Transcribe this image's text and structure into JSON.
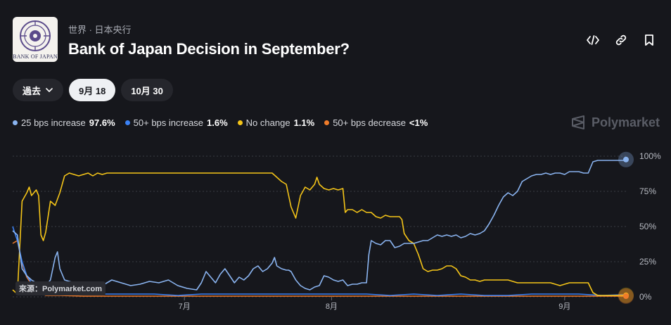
{
  "header": {
    "logo_text": "BANK OF JAPAN",
    "breadcrumb": "世界 · 日本央行",
    "title": "Bank of Japan Decision in September?"
  },
  "actions": [
    {
      "icon": "embed-icon"
    },
    {
      "icon": "link-icon"
    },
    {
      "icon": "bookmark-icon"
    }
  ],
  "tabs": {
    "history_label": "過去",
    "date1_label": "9月 18",
    "date2_label": "10月 30"
  },
  "legend": [
    {
      "label": "25 bps increase",
      "value": "97.6%",
      "color": "#8ab4f0"
    },
    {
      "label": "50+ bps increase",
      "value": "1.6%",
      "color": "#3b82f6"
    },
    {
      "label": "No change",
      "value": "1.1%",
      "color": "#f5c518"
    },
    {
      "label": "50+ bps decrease",
      "value": "<1%",
      "color": "#f07c2a"
    }
  ],
  "brand": "Polymarket",
  "source": "來源：Polymarket.com",
  "chart_data": {
    "type": "line",
    "x_tick_labels": [
      "7月",
      "8月",
      "9月"
    ],
    "x_tick_positions": [
      0.28,
      0.52,
      0.9
    ],
    "y_ticks": [
      "100%",
      "75%",
      "50%",
      "25%",
      "0%"
    ],
    "ylim": [
      0,
      100
    ],
    "grid": true,
    "series": [
      {
        "name": "25 bps increase",
        "color": "#8ab4f0",
        "points": [
          [
            0,
            47
          ],
          [
            0.01,
            44
          ],
          [
            0.02,
            20
          ],
          [
            0.03,
            15
          ],
          [
            0.04,
            12
          ],
          [
            0.05,
            10
          ],
          [
            0.06,
            9
          ],
          [
            0.07,
            8
          ],
          [
            0.08,
            12
          ],
          [
            0.09,
            28
          ],
          [
            0.095,
            32
          ],
          [
            0.1,
            20
          ],
          [
            0.11,
            12
          ],
          [
            0.13,
            10
          ],
          [
            0.15,
            10
          ],
          [
            0.17,
            9
          ],
          [
            0.19,
            8
          ],
          [
            0.21,
            12
          ],
          [
            0.23,
            10
          ],
          [
            0.25,
            8
          ],
          [
            0.27,
            9
          ],
          [
            0.29,
            11
          ],
          [
            0.31,
            10
          ],
          [
            0.33,
            12
          ],
          [
            0.35,
            8
          ],
          [
            0.37,
            6
          ],
          [
            0.39,
            5
          ],
          [
            0.4,
            10
          ],
          [
            0.41,
            18
          ],
          [
            0.42,
            14
          ],
          [
            0.43,
            10
          ],
          [
            0.44,
            16
          ],
          [
            0.45,
            20
          ],
          [
            0.46,
            15
          ],
          [
            0.47,
            10
          ],
          [
            0.48,
            14
          ],
          [
            0.49,
            12
          ],
          [
            0.5,
            15
          ],
          [
            0.51,
            20
          ],
          [
            0.52,
            22
          ],
          [
            0.53,
            18
          ],
          [
            0.54,
            20
          ],
          [
            0.55,
            24
          ],
          [
            0.555,
            28
          ],
          [
            0.56,
            22
          ],
          [
            0.57,
            20
          ],
          [
            0.58,
            19
          ],
          [
            0.585,
            19
          ],
          [
            0.59,
            18
          ],
          [
            0.6,
            12
          ],
          [
            0.61,
            8
          ],
          [
            0.62,
            6
          ],
          [
            0.63,
            5
          ],
          [
            0.64,
            7
          ],
          [
            0.65,
            8
          ],
          [
            0.66,
            15
          ],
          [
            0.67,
            14
          ],
          [
            0.68,
            12
          ],
          [
            0.69,
            11
          ],
          [
            0.7,
            12
          ],
          [
            0.71,
            8
          ],
          [
            0.72,
            9
          ],
          [
            0.73,
            9
          ],
          [
            0.74,
            10
          ],
          [
            0.75,
            10
          ],
          [
            0.755,
            30
          ],
          [
            0.76,
            40
          ],
          [
            0.77,
            38
          ],
          [
            0.78,
            37
          ],
          [
            0.79,
            40
          ],
          [
            0.8,
            40
          ],
          [
            0.81,
            35
          ],
          [
            0.82,
            36
          ],
          [
            0.83,
            38
          ],
          [
            0.84,
            38
          ],
          [
            0.85,
            38
          ],
          [
            0.86,
            39
          ],
          [
            0.87,
            40
          ],
          [
            0.88,
            40
          ],
          [
            0.89,
            42
          ],
          [
            0.9,
            44
          ],
          [
            0.91,
            43
          ],
          [
            0.92,
            44
          ],
          [
            0.93,
            43
          ],
          [
            0.94,
            44
          ],
          [
            0.95,
            42
          ],
          [
            0.96,
            43
          ],
          [
            0.97,
            45
          ],
          [
            0.98,
            44
          ],
          [
            0.99,
            45
          ],
          [
            1.0,
            47
          ],
          [
            1.01,
            52
          ],
          [
            1.02,
            58
          ],
          [
            1.03,
            65
          ],
          [
            1.04,
            71
          ],
          [
            1.05,
            74
          ],
          [
            1.06,
            72
          ],
          [
            1.07,
            75
          ],
          [
            1.08,
            82
          ],
          [
            1.09,
            84
          ],
          [
            1.1,
            86
          ],
          [
            1.11,
            87
          ],
          [
            1.12,
            87
          ],
          [
            1.13,
            88
          ],
          [
            1.14,
            87
          ],
          [
            1.15,
            88
          ],
          [
            1.16,
            88
          ],
          [
            1.17,
            87
          ],
          [
            1.18,
            89
          ],
          [
            1.19,
            89
          ],
          [
            1.2,
            89
          ],
          [
            1.21,
            88
          ],
          [
            1.22,
            88
          ],
          [
            1.23,
            96
          ],
          [
            1.24,
            97
          ],
          [
            1.25,
            97
          ],
          [
            1.27,
            97
          ],
          [
            1.3,
            97
          ]
        ],
        "last_value": 97.6
      },
      {
        "name": "50+ bps increase",
        "color": "#3b82f6",
        "points": [
          [
            0,
            50
          ],
          [
            0.01,
            40
          ],
          [
            0.02,
            25
          ],
          [
            0.03,
            15
          ],
          [
            0.04,
            10
          ],
          [
            0.05,
            8
          ],
          [
            0.06,
            6
          ],
          [
            0.07,
            4
          ],
          [
            0.08,
            3
          ],
          [
            0.1,
            3
          ],
          [
            0.15,
            2
          ],
          [
            0.2,
            2
          ],
          [
            0.25,
            2
          ],
          [
            0.3,
            2
          ],
          [
            0.35,
            1
          ],
          [
            0.4,
            2
          ],
          [
            0.45,
            2
          ],
          [
            0.5,
            2
          ],
          [
            0.55,
            2
          ],
          [
            0.6,
            2
          ],
          [
            0.65,
            2
          ],
          [
            0.7,
            2
          ],
          [
            0.75,
            2
          ],
          [
            0.8,
            1
          ],
          [
            0.85,
            2
          ],
          [
            0.9,
            1
          ],
          [
            0.95,
            2
          ],
          [
            1.0,
            1
          ],
          [
            1.05,
            1
          ],
          [
            1.1,
            2
          ],
          [
            1.15,
            2
          ],
          [
            1.2,
            2
          ],
          [
            1.25,
            1
          ],
          [
            1.3,
            1.6
          ]
        ],
        "last_value": 1.6
      },
      {
        "name": "No change",
        "color": "#f5c518",
        "points": [
          [
            0,
            5
          ],
          [
            0.01,
            2
          ],
          [
            0.02,
            68
          ],
          [
            0.03,
            74
          ],
          [
            0.035,
            78
          ],
          [
            0.04,
            72
          ],
          [
            0.05,
            76
          ],
          [
            0.055,
            72
          ],
          [
            0.06,
            44
          ],
          [
            0.065,
            40
          ],
          [
            0.07,
            46
          ],
          [
            0.08,
            68
          ],
          [
            0.09,
            65
          ],
          [
            0.1,
            74
          ],
          [
            0.11,
            86
          ],
          [
            0.12,
            88
          ],
          [
            0.13,
            87
          ],
          [
            0.14,
            86
          ],
          [
            0.15,
            87
          ],
          [
            0.16,
            88
          ],
          [
            0.17,
            86
          ],
          [
            0.18,
            88
          ],
          [
            0.19,
            87
          ],
          [
            0.2,
            88
          ],
          [
            0.25,
            88
          ],
          [
            0.3,
            88
          ],
          [
            0.35,
            88
          ],
          [
            0.4,
            88
          ],
          [
            0.45,
            88
          ],
          [
            0.5,
            88
          ],
          [
            0.55,
            88
          ],
          [
            0.56,
            85
          ],
          [
            0.57,
            82
          ],
          [
            0.58,
            80
          ],
          [
            0.59,
            64
          ],
          [
            0.6,
            56
          ],
          [
            0.61,
            72
          ],
          [
            0.62,
            78
          ],
          [
            0.63,
            76
          ],
          [
            0.64,
            80
          ],
          [
            0.645,
            85
          ],
          [
            0.65,
            80
          ],
          [
            0.66,
            77
          ],
          [
            0.67,
            76
          ],
          [
            0.68,
            77
          ],
          [
            0.69,
            76
          ],
          [
            0.7,
            77
          ],
          [
            0.705,
            60
          ],
          [
            0.71,
            62
          ],
          [
            0.72,
            62
          ],
          [
            0.73,
            60
          ],
          [
            0.74,
            62
          ],
          [
            0.75,
            60
          ],
          [
            0.76,
            60
          ],
          [
            0.77,
            57
          ],
          [
            0.78,
            56
          ],
          [
            0.79,
            58
          ],
          [
            0.8,
            57
          ],
          [
            0.81,
            57
          ],
          [
            0.82,
            57
          ],
          [
            0.825,
            55
          ],
          [
            0.83,
            45
          ],
          [
            0.84,
            40
          ],
          [
            0.85,
            38
          ],
          [
            0.86,
            30
          ],
          [
            0.87,
            20
          ],
          [
            0.88,
            18
          ],
          [
            0.89,
            19
          ],
          [
            0.9,
            19
          ],
          [
            0.91,
            20
          ],
          [
            0.92,
            22
          ],
          [
            0.93,
            22
          ],
          [
            0.94,
            20
          ],
          [
            0.95,
            15
          ],
          [
            0.96,
            14
          ],
          [
            0.97,
            12
          ],
          [
            0.98,
            12
          ],
          [
            0.99,
            11
          ],
          [
            1.0,
            12
          ],
          [
            1.01,
            12
          ],
          [
            1.02,
            12
          ],
          [
            1.03,
            12
          ],
          [
            1.05,
            12
          ],
          [
            1.07,
            10
          ],
          [
            1.08,
            10
          ],
          [
            1.09,
            10
          ],
          [
            1.1,
            10
          ],
          [
            1.12,
            10
          ],
          [
            1.14,
            10
          ],
          [
            1.16,
            8
          ],
          [
            1.18,
            10
          ],
          [
            1.2,
            10
          ],
          [
            1.22,
            10
          ],
          [
            1.23,
            3
          ],
          [
            1.24,
            1
          ],
          [
            1.27,
            1
          ],
          [
            1.3,
            1.1
          ]
        ],
        "last_value": 1.1
      },
      {
        "name": "50+ bps decrease",
        "color": "#f07c2a",
        "points": [
          [
            0,
            38
          ],
          [
            0.01,
            40
          ],
          [
            0.02,
            24
          ],
          [
            0.03,
            14
          ],
          [
            0.04,
            9
          ],
          [
            0.05,
            4
          ],
          [
            0.06,
            3
          ],
          [
            0.07,
            1
          ],
          [
            0.08,
            1
          ],
          [
            0.1,
            1
          ],
          [
            0.15,
            0.5
          ],
          [
            0.2,
            0.5
          ],
          [
            0.25,
            0.5
          ],
          [
            0.3,
            0.5
          ],
          [
            0.35,
            0.5
          ],
          [
            0.4,
            0.5
          ],
          [
            0.45,
            0.5
          ],
          [
            0.5,
            0.5
          ],
          [
            0.55,
            0.5
          ],
          [
            0.6,
            0.5
          ],
          [
            0.65,
            0.5
          ],
          [
            0.7,
            0.5
          ],
          [
            0.75,
            0.5
          ],
          [
            0.8,
            0.5
          ],
          [
            0.85,
            0.5
          ],
          [
            0.9,
            0.5
          ],
          [
            0.95,
            0.5
          ],
          [
            1.0,
            0.5
          ],
          [
            1.05,
            0.5
          ],
          [
            1.1,
            0.5
          ],
          [
            1.15,
            0.5
          ],
          [
            1.2,
            0.5
          ],
          [
            1.25,
            0.5
          ],
          [
            1.3,
            0.5
          ]
        ],
        "last_value": 0.5
      }
    ]
  }
}
